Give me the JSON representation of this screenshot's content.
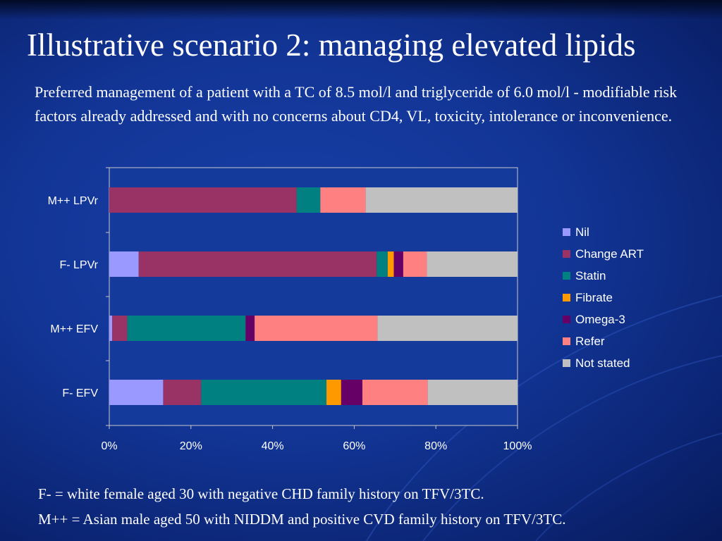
{
  "slide": {
    "title": "Illustrative scenario 2: managing elevated lipids",
    "intro": "Preferred management of a patient with a TC of 8.5 mol/l and triglyceride of 6.0 mol/l - modifiable risk factors already addressed and with no concerns about CD4, VL, toxicity, intolerance or inconvenience.",
    "footnotes": [
      "F- = white female aged 30 with negative CHD family history on TFV/3TC.",
      "M++ = Asian male aged 50 with NIDDM and positive CVD family history on TFV/3TC."
    ]
  },
  "colors": {
    "background": "#123596",
    "plot_background": "#143a9c",
    "axis": "#c8c8c8",
    "text": "#ffffff"
  },
  "chart_data": {
    "type": "bar",
    "orientation": "horizontal",
    "stacked": "percent",
    "categories": [
      "M++ LPVr",
      "F- LPVr",
      "M++ EFV",
      "F- EFV"
    ],
    "series": [
      {
        "name": "Nil",
        "color": "#9999ff",
        "values": [
          0,
          7.2,
          0.7,
          13.2
        ]
      },
      {
        "name": "Change ART",
        "color": "#993366",
        "values": [
          45.9,
          58.3,
          3.7,
          9.3
        ]
      },
      {
        "name": "Statin",
        "color": "#008080",
        "values": [
          5.8,
          2.7,
          29.0,
          30.7
        ]
      },
      {
        "name": "Fibrate",
        "color": "#ff9900",
        "values": [
          0,
          1.5,
          0,
          3.6
        ]
      },
      {
        "name": "Omega-3",
        "color": "#660066",
        "values": [
          0,
          2.3,
          2.2,
          5.2
        ]
      },
      {
        "name": "Refer",
        "color": "#ff8080",
        "values": [
          11.1,
          5.8,
          30.1,
          16.0
        ]
      },
      {
        "name": "Not stated",
        "color": "#c0c0c0",
        "values": [
          37.2,
          22.2,
          34.3,
          22.0
        ]
      }
    ],
    "xlim": [
      0,
      100
    ],
    "xticks": [
      "0%",
      "20%",
      "40%",
      "60%",
      "80%",
      "100%"
    ],
    "legend_position": "right",
    "grid": false
  }
}
